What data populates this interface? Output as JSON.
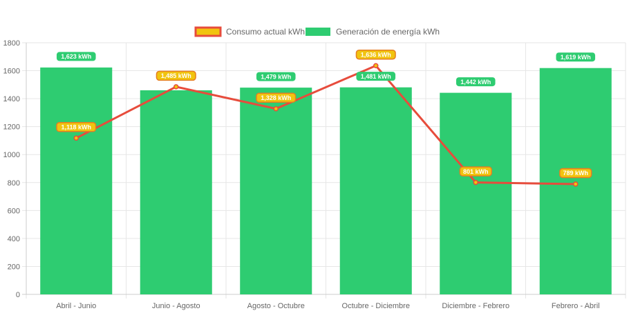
{
  "chart_data": {
    "type": "bar",
    "title": "",
    "xlabel": "",
    "ylabel": "",
    "ylim": [
      0,
      1800
    ],
    "yticks": [
      0,
      200,
      400,
      600,
      800,
      1000,
      1200,
      1400,
      1600,
      1800
    ],
    "grid": true,
    "legend_position": "top-center",
    "categories": [
      "Abril - Junio",
      "Junio - Agosto",
      "Agosto - Octubre",
      "Octubre - Diciembre",
      "Diciembre - Febrero",
      "Febrero - Abril"
    ],
    "series": [
      {
        "name": "Consumo actual kWh",
        "type": "line",
        "color": "#e74c3c",
        "fill": "#f1c40f",
        "values": [
          1118,
          1485,
          1328,
          1636,
          801,
          789
        ],
        "labels": [
          "1,118 kWh",
          "1,485 kWh",
          "1,328 kWh",
          "1,636 kWh",
          "801 kWh",
          "789 kWh"
        ]
      },
      {
        "name": "Generación de energía kWh",
        "type": "bar",
        "color": "#2ecc71",
        "values": [
          1623,
          1460,
          1479,
          1481,
          1442,
          1619
        ],
        "labels": [
          "1,623 kWh",
          "",
          "1,479 kWh",
          "1,481 kWh",
          "1,442 kWh",
          "1,619 kWh"
        ]
      }
    ]
  }
}
